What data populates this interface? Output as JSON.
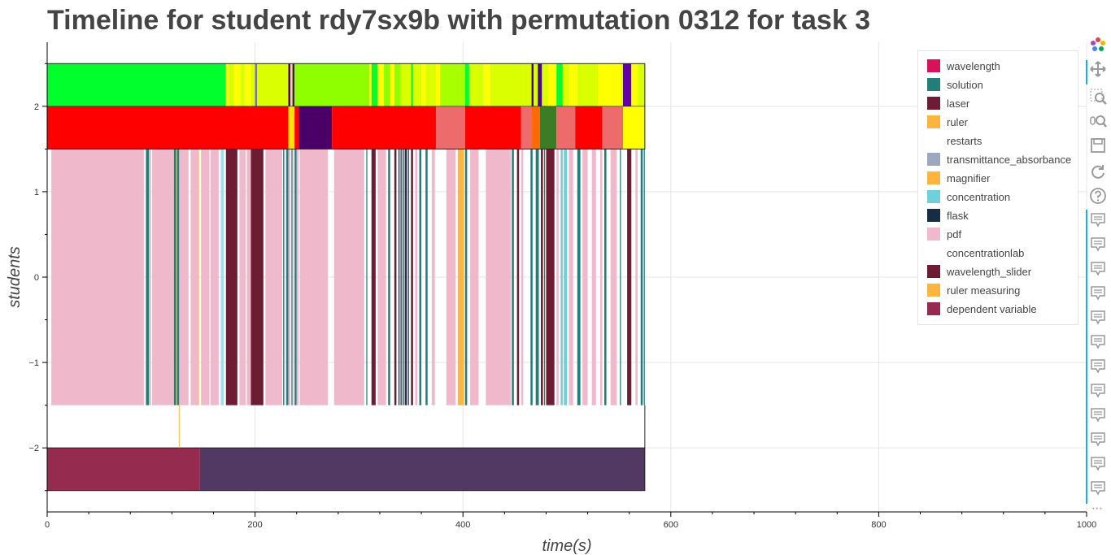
{
  "chart_title": "Timeline for student rdy7sx9b with permutation 0312 for task 3",
  "chart_data": {
    "type": "timeline",
    "title": "Timeline for student rdy7sx9b with permutation 0312 for task 3",
    "xlabel": "time(s)",
    "ylabel": "students",
    "xlim": [
      0,
      1000
    ],
    "ylim": [
      -2.75,
      2.75
    ],
    "x_ticks": [
      0,
      200,
      400,
      600,
      800,
      1000
    ],
    "y_ticks": [
      {
        "value": 2,
        "label": "2"
      },
      {
        "value": 1,
        "label": "1"
      },
      {
        "value": 0,
        "label": "0"
      },
      {
        "value": -1,
        "label": "−1"
      },
      {
        "value": -2,
        "label": "−2"
      }
    ],
    "grid": true,
    "legend_position": "top-right",
    "legend": [
      {
        "label": "wavelength",
        "color": "#d6135a"
      },
      {
        "label": "solution",
        "color": "#227e78"
      },
      {
        "label": "laser",
        "color": "#6c1d33"
      },
      {
        "label": "ruler",
        "color": "#fdb53d"
      },
      {
        "label": "restarts",
        "color": null
      },
      {
        "label": "transmittance_absorbance",
        "color": "#9ba8bd"
      },
      {
        "label": "magnifier",
        "color": "#fdb53d"
      },
      {
        "label": "concentration",
        "color": "#6dd0da"
      },
      {
        "label": "flask",
        "color": "#172d43"
      },
      {
        "label": "pdf",
        "color": "#efb8cb"
      },
      {
        "label": "concentrationlab",
        "color": null
      },
      {
        "label": "wavelength_slider",
        "color": "#6c1d33"
      },
      {
        "label": "ruler measuring",
        "color": "#fdb53d"
      },
      {
        "label": "dependent variable",
        "color": "#952b4f"
      }
    ],
    "rows": [
      {
        "y": [
          2,
          2.5
        ],
        "segments": [
          [
            0,
            172,
            "#00ff2d"
          ],
          [
            172,
            174,
            "#ffff00"
          ],
          [
            174,
            180,
            "#d9ff00"
          ],
          [
            180,
            186,
            "#ffff00"
          ],
          [
            186,
            190,
            "#d9ff00"
          ],
          [
            190,
            196,
            "#ffff00"
          ],
          [
            196,
            200,
            "#d9ff00"
          ],
          [
            200,
            202,
            "#7f5fff"
          ],
          [
            202,
            232,
            "#d9ff00"
          ],
          [
            232,
            234,
            "#5000a0"
          ],
          [
            234,
            236,
            "#d9ff00"
          ],
          [
            236,
            238,
            "#5000a0"
          ],
          [
            238,
            242,
            "#8fff00"
          ],
          [
            242,
            310,
            "#8fff00"
          ],
          [
            310,
            312,
            "#ffff00"
          ],
          [
            312,
            318,
            "#00ff2d"
          ],
          [
            318,
            324,
            "#ffff00"
          ],
          [
            324,
            330,
            "#8fff00"
          ],
          [
            330,
            334,
            "#ffff00"
          ],
          [
            334,
            340,
            "#8fff00"
          ],
          [
            340,
            350,
            "#d9ff00"
          ],
          [
            350,
            352,
            "#00ff2d"
          ],
          [
            352,
            360,
            "#d9ff00"
          ],
          [
            360,
            364,
            "#ffff00"
          ],
          [
            364,
            374,
            "#d9ff00"
          ],
          [
            374,
            378,
            "#ffff00"
          ],
          [
            378,
            402,
            "#a8ff00"
          ],
          [
            402,
            406,
            "#00ff2d"
          ],
          [
            406,
            420,
            "#d9ff00"
          ],
          [
            420,
            426,
            "#ffff00"
          ],
          [
            426,
            466,
            "#d9ff00"
          ],
          [
            466,
            468,
            "#5000a0"
          ],
          [
            468,
            472,
            "#d9ff00"
          ],
          [
            472,
            476,
            "#5000a0"
          ],
          [
            476,
            482,
            "#d9ff00"
          ],
          [
            482,
            490,
            "#ffff00"
          ],
          [
            490,
            496,
            "#00ff2d"
          ],
          [
            496,
            502,
            "#d9ff00"
          ],
          [
            502,
            510,
            "#ffff00"
          ],
          [
            510,
            530,
            "#d9ff00"
          ],
          [
            530,
            552,
            "#ffff00"
          ],
          [
            552,
            554,
            "#d9ff00"
          ],
          [
            554,
            562,
            "#6000a8"
          ],
          [
            562,
            568,
            "#ffff00"
          ],
          [
            568,
            575,
            "#d9ff00"
          ]
        ]
      },
      {
        "y": [
          1.5,
          2
        ],
        "segments": [
          [
            0,
            232,
            "#ff0000"
          ],
          [
            232,
            238,
            "#ffe200"
          ],
          [
            238,
            242,
            "#ff0000"
          ],
          [
            242,
            274,
            "#4b0068"
          ],
          [
            274,
            374,
            "#ff0000"
          ],
          [
            374,
            402,
            "#ee6b6b"
          ],
          [
            402,
            456,
            "#ff0000"
          ],
          [
            456,
            466,
            "#ee6b6b"
          ],
          [
            466,
            474,
            "#ff6a00"
          ],
          [
            474,
            490,
            "#3a7d24"
          ],
          [
            490,
            508,
            "#ee6b6b"
          ],
          [
            508,
            534,
            "#ff0000"
          ],
          [
            534,
            554,
            "#ee6b6b"
          ],
          [
            554,
            575,
            "#ffff00"
          ]
        ]
      },
      {
        "y": [
          -1.5,
          1.5
        ],
        "segments": [
          [
            4,
            93,
            "#efb8cb"
          ],
          [
            95,
            98,
            "#227e78"
          ],
          [
            98,
            100,
            "#efb8cb"
          ],
          [
            101,
            122,
            "#efb8cb"
          ],
          [
            122,
            124,
            "#227e78"
          ],
          [
            124,
            125,
            "#fdb53d"
          ],
          [
            125,
            127,
            "#227e78"
          ],
          [
            127,
            136,
            "#efb8cb"
          ],
          [
            138,
            145,
            "#efb8cb"
          ],
          [
            145,
            146,
            "#fdb53d"
          ],
          [
            148,
            156,
            "#efb8cb"
          ],
          [
            157,
            165,
            "#efb8cb"
          ],
          [
            167,
            170,
            "#9ee0e6"
          ],
          [
            172,
            183,
            "#6c1d33"
          ],
          [
            185,
            191,
            "#efb8cb"
          ],
          [
            192,
            196,
            "#efb8cb"
          ],
          [
            196,
            208,
            "#6c1d33"
          ],
          [
            210,
            218,
            "#efb8cb"
          ],
          [
            218,
            226,
            "#efb8cb"
          ],
          [
            227,
            228,
            "#227e78"
          ],
          [
            228,
            229,
            "#efb8cb"
          ],
          [
            230,
            232,
            "#227e78"
          ],
          [
            232,
            234,
            "#efb8cb"
          ],
          [
            235,
            236,
            "#227e78"
          ],
          [
            236,
            237,
            "#efb8cb"
          ],
          [
            238,
            240,
            "#227e78"
          ],
          [
            240,
            242,
            "#efb8cb"
          ],
          [
            243,
            270,
            "#efb8cb"
          ],
          [
            276,
            305,
            "#efb8cb"
          ],
          [
            307,
            308,
            "#227e78"
          ],
          [
            312,
            316,
            "#6c1d33"
          ],
          [
            318,
            326,
            "#efb8cb"
          ],
          [
            328,
            330,
            "#227e78"
          ],
          [
            334,
            336,
            "#6c1d33"
          ],
          [
            338,
            339,
            "#172d43"
          ],
          [
            340,
            341,
            "#172d43"
          ],
          [
            342,
            343,
            "#172d43"
          ],
          [
            344,
            346,
            "#172d43"
          ],
          [
            347,
            348,
            "#172d43"
          ],
          [
            350,
            352,
            "#6c1d33"
          ],
          [
            354,
            356,
            "#efb8cb"
          ],
          [
            358,
            360,
            "#227e78"
          ],
          [
            364,
            366,
            "#227e78"
          ],
          [
            370,
            373,
            "#efb8cb"
          ],
          [
            384,
            393,
            "#efb8cb"
          ],
          [
            395,
            401,
            "#fdb53d"
          ],
          [
            402,
            404,
            "#227e78"
          ],
          [
            407,
            415,
            "#efb8cb"
          ],
          [
            422,
            446,
            "#efb8cb"
          ],
          [
            447,
            449,
            "#227e78"
          ],
          [
            452,
            454,
            "#6c1d33"
          ],
          [
            456,
            458,
            "#efb8cb"
          ],
          [
            465,
            467,
            "#227e78"
          ],
          [
            470,
            473,
            "#227e78"
          ],
          [
            475,
            477,
            "#6c1d33"
          ],
          [
            478,
            479,
            "#227e78"
          ],
          [
            480,
            488,
            "#6c1d33"
          ],
          [
            490,
            492,
            "#efb8cb"
          ],
          [
            494,
            496,
            "#6dd0da"
          ],
          [
            497,
            500,
            "#6dd0da"
          ],
          [
            502,
            506,
            "#efb8cb"
          ],
          [
            510,
            513,
            "#227e78"
          ],
          [
            515,
            520,
            "#efb8cb"
          ],
          [
            524,
            528,
            "#efb8cb"
          ],
          [
            532,
            534,
            "#efb8cb"
          ],
          [
            536,
            538,
            "#227e78"
          ],
          [
            542,
            548,
            "#efb8cb"
          ],
          [
            551,
            552,
            "#227e78"
          ],
          [
            558,
            562,
            "#6c1d33"
          ],
          [
            566,
            568,
            "#efb8cb"
          ],
          [
            571,
            573,
            "#227e78"
          ],
          [
            574,
            575,
            "#227e78"
          ]
        ]
      },
      {
        "y": [
          -2.5,
          -2
        ],
        "segments": [
          [
            0,
            147,
            "#952b4f"
          ],
          [
            147,
            575,
            "#523964"
          ]
        ]
      }
    ],
    "restart_markers": [
      {
        "x": 127,
        "y": [
          -2,
          -1.5
        ],
        "color": "#fdb53d"
      }
    ],
    "end_time": 575
  },
  "toolbar": {
    "tools": [
      {
        "name": "logo-icon",
        "active": false
      },
      {
        "name": "pan-icon",
        "active": true
      },
      {
        "name": "box-zoom-icon",
        "active": false
      },
      {
        "name": "wheel-zoom-icon",
        "active": false
      },
      {
        "name": "save-icon",
        "active": false
      },
      {
        "name": "reset-icon",
        "active": false
      },
      {
        "name": "help-icon",
        "active": false
      },
      {
        "name": "hover-icon",
        "active": true
      },
      {
        "name": "hover-icon",
        "active": true
      },
      {
        "name": "hover-icon",
        "active": true
      },
      {
        "name": "hover-icon",
        "active": true
      },
      {
        "name": "hover-icon",
        "active": true
      },
      {
        "name": "hover-icon",
        "active": true
      },
      {
        "name": "hover-icon",
        "active": true
      },
      {
        "name": "hover-icon",
        "active": true
      },
      {
        "name": "hover-icon",
        "active": true
      },
      {
        "name": "hover-icon",
        "active": true
      },
      {
        "name": "hover-icon",
        "active": true
      },
      {
        "name": "hover-icon",
        "active": true
      },
      {
        "name": "hover-icon",
        "active": true
      },
      {
        "name": "hover-icon",
        "active": true
      }
    ],
    "more_label": "⋯"
  }
}
